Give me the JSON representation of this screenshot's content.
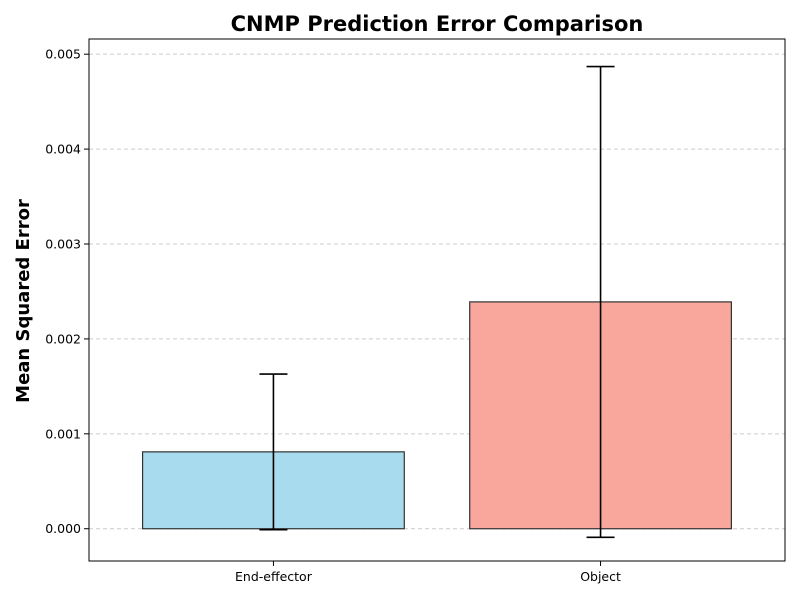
{
  "chart_data": {
    "type": "bar",
    "title": "CNMP Prediction Error Comparison",
    "xlabel": "",
    "ylabel": "Mean Squared Error",
    "categories": [
      "End-effector",
      "Object"
    ],
    "values": [
      0.00081,
      0.00239
    ],
    "errors": [
      0.00082,
      0.00248
    ],
    "colors": [
      "#a8dbee",
      "#f9a79c"
    ],
    "ylim": [
      -0.00034,
      0.00516
    ],
    "yticks": [
      0.0,
      0.001,
      0.002,
      0.003,
      0.004,
      0.005
    ],
    "ytick_labels": [
      "0.000",
      "0.001",
      "0.002",
      "0.003",
      "0.004",
      "0.005"
    ],
    "grid": "y-dashed"
  }
}
